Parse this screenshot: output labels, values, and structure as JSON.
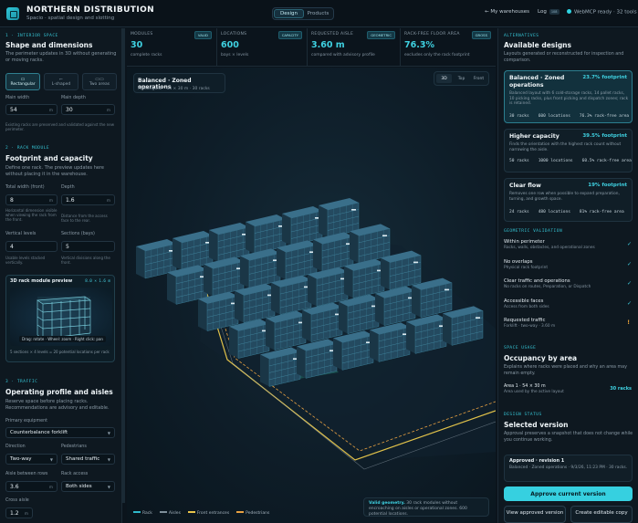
{
  "header": {
    "title": "NORTHERN DISTRIBUTION",
    "subtitle": "Spacio · spatial design and slotting",
    "tabs": [
      {
        "label": "Design"
      },
      {
        "label": "Products"
      }
    ],
    "back_label": "← My warehouses",
    "log_label": "Log",
    "log_count": "108",
    "status_label": "WebMCP ready · 32 tools"
  },
  "left": {
    "interior": {
      "caption": "1 · INTERIOR SPACE",
      "heading": "Shape and dimensions",
      "desc": "The perimeter updates in 3D without generating or moving racks.",
      "shapes": [
        {
          "icon": "▭",
          "label": "Rectangular"
        },
        {
          "icon": "⌐",
          "label": "L-shaped"
        },
        {
          "icon": "▭▭",
          "label": "Two areas"
        }
      ],
      "width_label": "Main width",
      "width_value": "54",
      "width_unit": "m",
      "depth_label": "Main depth",
      "depth_value": "30",
      "depth_unit": "m",
      "note": "Existing racks are preserved and validated against the new perimeter."
    },
    "rack": {
      "caption": "2 · RACK MODULE",
      "heading": "Footprint and capacity",
      "desc": "Define one rack. The preview updates here without placing it in the warehouse.",
      "total_width_label": "Total width (front)",
      "total_width_value": "8",
      "total_width_unit": "m",
      "total_width_hint": "Horizontal dimension visible when viewing the rack from the front.",
      "depth_label": "Depth",
      "depth_value": "1.6",
      "depth_unit": "m",
      "depth_hint": "Distance from the access face to the rear.",
      "levels_label": "Vertical levels",
      "levels_value": "4",
      "levels_hint": "Usable levels stacked vertically.",
      "sections_label": "Sections (bays)",
      "sections_value": "5",
      "sections_hint": "Vertical divisions along the front.",
      "preview_title": "3D rack module preview",
      "preview_dims": "8.0 × 1.6 m",
      "preview_tip": "Drag: rotate · Wheel: zoom · Right click: pan",
      "preview_caption": "5 sections × 4 levels = 20 potential locations per rack"
    },
    "traffic": {
      "caption": "3 · TRAFFIC",
      "heading": "Operating profile and aisles",
      "desc": "Reserve space before placing racks. Recommendations are advisory and editable.",
      "equipment_label": "Primary equipment",
      "equipment_value": "Counterbalance forklift",
      "direction_label": "Direction",
      "direction_value": "Two-way",
      "pedestrians_label": "Pedestrians",
      "pedestrians_value": "Shared traffic",
      "aisle_label": "Aisle between rows",
      "aisle_value": "3.6",
      "aisle_unit": "m",
      "access_label": "Rack access",
      "access_value": "Both sides",
      "cross_label": "Cross aisle",
      "cross_value": "1.2",
      "cross_unit": "m"
    }
  },
  "stats": [
    {
      "label": "MODULES",
      "badge": "VALID",
      "value": "30",
      "sub": "complete racks"
    },
    {
      "label": "LOCATIONS",
      "badge": "CAPACITY",
      "value": "600",
      "sub": "bays × levels"
    },
    {
      "label": "REQUESTED AISLE",
      "badge": "GEOMETRIC",
      "value": "3.60 m",
      "sub": "compared with advisory profile"
    },
    {
      "label": "RACK-FREE FLOOR AREA",
      "badge": "GROSS",
      "value": "76.3%",
      "sub": "excludes only the rack footprint"
    }
  ],
  "viewport": {
    "title": "Balanced · Zoned operations",
    "subtitle": "Rectangular · 54 × 30 m · 30 racks",
    "view_buttons": [
      "3D",
      "Top",
      "Front"
    ],
    "legend": [
      {
        "label": "Rack",
        "color": "#2fb9cc"
      },
      {
        "label": "Aisles",
        "color": "#7e8e99"
      },
      {
        "label": "Front entrances",
        "color": "#e8c44a"
      },
      {
        "label": "Pedestrians",
        "color": "#e8a142"
      }
    ],
    "valid_strong": "Valid geometry.",
    "valid_text": "30 rack modules without encroaching on aisles or operational zones. 600 potential locations."
  },
  "right": {
    "alternatives": {
      "caption": "ALTERNATIVES",
      "heading": "Available designs",
      "desc": "Layouts generated or reconstructed for inspection and comparison.",
      "cards": [
        {
          "title": "Balanced · Zoned operations",
          "footprint": "23.7% footprint",
          "desc": "Balanced layout with 6 cold-storage racks, 14 pallet racks, 10 picking racks, plus front picking and dispatch zones; rack is retained.",
          "metrics": [
            "30 racks",
            "600 locations",
            "76.3% rack-free area"
          ]
        },
        {
          "title": "Higher capacity",
          "footprint": "39.5% footprint",
          "desc": "Finds the orientation with the highest rack count without narrowing the aisle.",
          "metrics": [
            "50 racks",
            "1000 locations",
            "60.5% rack-free area"
          ]
        },
        {
          "title": "Clear flow",
          "footprint": "19% footprint",
          "desc": "Removes one row when possible to expand preparation, turning, and growth space.",
          "metrics": [
            "24 racks",
            "480 locations",
            "81% rack-free area"
          ]
        }
      ]
    },
    "validation": {
      "caption": "GEOMETRIC VALIDATION",
      "items": [
        {
          "title": "Within perimeter",
          "sub": "Racks, walls, obstacles, and operational zones",
          "status": "✓"
        },
        {
          "title": "No overlaps",
          "sub": "Physical rack footprint",
          "status": "✓"
        },
        {
          "title": "Clear traffic and operations",
          "sub": "No racks on routes, Preparation, or Dispatch",
          "status": "✓"
        },
        {
          "title": "Accessible faces",
          "sub": "Access from both sides",
          "status": "✓"
        },
        {
          "title": "Requested traffic",
          "sub": "Forklift · two-way · 3.60 m",
          "status": "!"
        }
      ]
    },
    "usage": {
      "caption": "SPACE USAGE",
      "heading": "Occupancy by area",
      "desc": "Explains where racks were placed and why an area may remain empty.",
      "area_title": "Area 1 · 54 × 30 m",
      "area_sub": "Area used by the active layout",
      "area_value": "30 racks"
    },
    "design": {
      "caption": "DESIGN STATUS",
      "heading": "Selected version",
      "desc": "Approval preserves a snapshot that does not change while you continue working.",
      "approved_title": "Approved · revision 1",
      "approved_desc": "Balanced · Zoned operations · 9/3/26, 11:23 PM · 30 racks.",
      "approve_btn": "Approve current version",
      "view_btn": "View approved version",
      "copy_btn": "Create editable copy"
    }
  }
}
